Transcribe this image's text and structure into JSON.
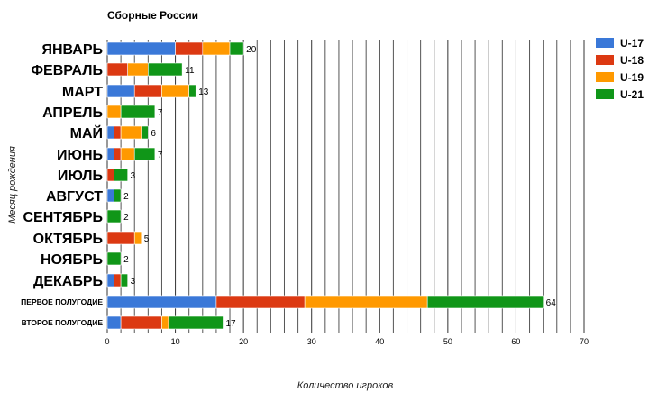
{
  "chart_data": {
    "type": "bar",
    "orientation": "horizontal",
    "stacked": true,
    "title": "Сборные России",
    "xlabel": "Количество игроков",
    "ylabel": "Месяц рождения",
    "xlim": [
      0,
      70
    ],
    "xticks": [
      0,
      10,
      20,
      30,
      40,
      50,
      60,
      70
    ],
    "grid": true,
    "legend_position": "right",
    "categories": [
      "ЯНВАРЬ",
      "ФЕВРАЛЬ",
      "МАРТ",
      "АПРЕЛЬ",
      "МАЙ",
      "ИЮНЬ",
      "ИЮЛЬ",
      "АВГУСТ",
      "СЕНТЯБРЬ",
      "ОКТЯБРЬ",
      "НОЯБРЬ",
      "ДЕКАБРЬ",
      "ПЕРВОЕ ПОЛУГОДИЕ",
      "ВТОРОЕ ПОЛУГОДИЕ"
    ],
    "series": [
      {
        "name": "U-17",
        "color": "#3a78d8",
        "values": [
          10,
          0,
          4,
          0,
          1,
          1,
          0,
          1,
          0,
          0,
          0,
          1,
          16,
          2
        ]
      },
      {
        "name": "U-18",
        "color": "#dc3912",
        "values": [
          4,
          3,
          4,
          0,
          1,
          1,
          1,
          0,
          0,
          4,
          0,
          1,
          13,
          6
        ]
      },
      {
        "name": "U-19",
        "color": "#ff9900",
        "values": [
          4,
          3,
          4,
          2,
          3,
          2,
          0,
          0,
          0,
          1,
          0,
          0,
          18,
          1
        ]
      },
      {
        "name": "U-21",
        "color": "#109618",
        "values": [
          2,
          5,
          1,
          5,
          1,
          3,
          2,
          1,
          2,
          0,
          2,
          1,
          17,
          8
        ]
      }
    ],
    "totals": [
      20,
      11,
      13,
      7,
      6,
      7,
      3,
      2,
      2,
      5,
      2,
      3,
      64,
      17
    ]
  }
}
